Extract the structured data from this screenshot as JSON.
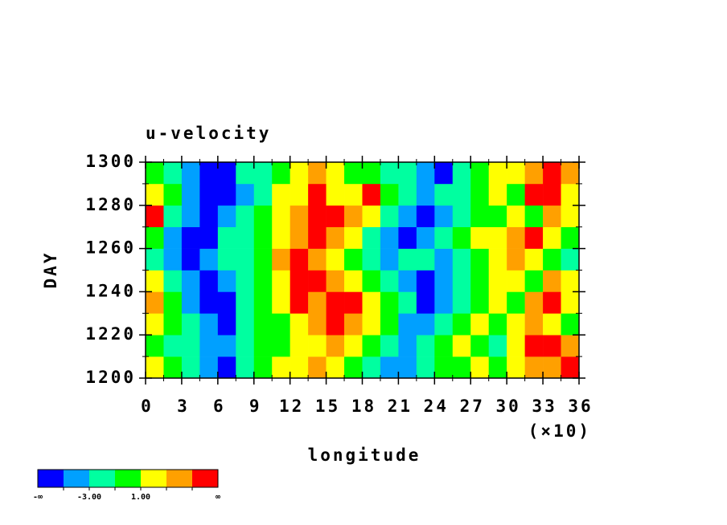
{
  "chart_data": {
    "type": "heatmap",
    "title": "u-velocity",
    "xlabel": "longitude",
    "ylabel": "DAY",
    "x_multiplier_label": "(×10)",
    "x": [
      0.75,
      2.25,
      3.75,
      5.25,
      6.75,
      8.25,
      9.75,
      11.25,
      12.75,
      14.25,
      15.75,
      17.25,
      18.75,
      20.25,
      21.75,
      23.25,
      24.75,
      26.25,
      27.75,
      29.25,
      30.75,
      32.25,
      33.75,
      35.25
    ],
    "y": [
      1205,
      1215,
      1225,
      1235,
      1245,
      1255,
      1265,
      1275,
      1285,
      1295
    ],
    "z": [
      [
        2,
        0,
        -2,
        -4,
        -6,
        -2,
        0,
        2,
        2,
        4,
        2,
        0,
        -2,
        -4,
        -4,
        -2,
        0,
        0,
        2,
        0,
        2,
        4,
        4,
        6
      ],
      [
        0,
        -2,
        -2,
        -4,
        -4,
        -2,
        0,
        0,
        2,
        2,
        4,
        2,
        0,
        -2,
        -4,
        -2,
        0,
        2,
        0,
        -2,
        2,
        6,
        6,
        4
      ],
      [
        2,
        0,
        -2,
        -4,
        -6,
        -2,
        0,
        0,
        2,
        4,
        6,
        4,
        2,
        0,
        -4,
        -4,
        -2,
        0,
        2,
        0,
        2,
        4,
        2,
        0
      ],
      [
        4,
        0,
        -4,
        -6,
        -6,
        -2,
        0,
        2,
        6,
        4,
        6,
        6,
        2,
        0,
        -2,
        -6,
        -4,
        -2,
        0,
        2,
        0,
        4,
        6,
        2
      ],
      [
        2,
        -2,
        -4,
        -6,
        -4,
        -2,
        0,
        2,
        6,
        6,
        4,
        2,
        0,
        -2,
        -4,
        -6,
        -4,
        -2,
        0,
        2,
        2,
        0,
        4,
        2
      ],
      [
        -2,
        -4,
        -6,
        -4,
        -2,
        -2,
        0,
        4,
        6,
        4,
        2,
        0,
        -2,
        -4,
        -2,
        -2,
        -4,
        -2,
        0,
        2,
        4,
        2,
        0,
        -2
      ],
      [
        0,
        -4,
        -6,
        -6,
        -2,
        -2,
        0,
        2,
        4,
        6,
        4,
        2,
        -2,
        -4,
        -6,
        -4,
        -2,
        0,
        2,
        2,
        4,
        6,
        2,
        0
      ],
      [
        6,
        -2,
        -4,
        -6,
        -4,
        -2,
        0,
        2,
        4,
        6,
        6,
        4,
        2,
        -2,
        -4,
        -6,
        -4,
        -2,
        0,
        0,
        2,
        0,
        4,
        2
      ],
      [
        2,
        0,
        -4,
        -6,
        -6,
        -4,
        -2,
        2,
        2,
        6,
        2,
        2,
        6,
        0,
        -2,
        -4,
        -2,
        -2,
        0,
        2,
        0,
        6,
        6,
        2
      ],
      [
        0,
        -2,
        -4,
        -6,
        -6,
        -2,
        -2,
        0,
        2,
        4,
        2,
        0,
        0,
        -2,
        -2,
        -4,
        -6,
        -2,
        0,
        2,
        2,
        4,
        6,
        4
      ]
    ],
    "xlim": [
      0,
      36
    ],
    "xticks": [
      0,
      3,
      6,
      9,
      12,
      15,
      18,
      21,
      24,
      27,
      30,
      33,
      36
    ],
    "xminorticks": [
      1.5,
      4.5,
      7.5,
      10.5,
      13.5,
      16.5,
      19.5,
      22.5,
      25.5,
      28.5,
      31.5,
      34.5
    ],
    "ylim": [
      1200,
      1300
    ],
    "yticks": [
      1200,
      1220,
      1240,
      1260,
      1280,
      1300
    ],
    "yminorticks": [
      1210,
      1230,
      1250,
      1270,
      1290
    ],
    "colorbar": {
      "colors": [
        "#0000ff",
        "#00a0ff",
        "#00ffa0",
        "#00ff00",
        "#ffff00",
        "#ffa000",
        "#ff0000"
      ],
      "levels": [
        -5,
        -3,
        -1,
        1,
        3,
        5
      ],
      "ticks": [
        {
          "value": -3,
          "label": "-3.00"
        },
        {
          "value": 1,
          "label": "1.00"
        }
      ],
      "end_labels": [
        "-∞",
        "∞"
      ]
    }
  }
}
